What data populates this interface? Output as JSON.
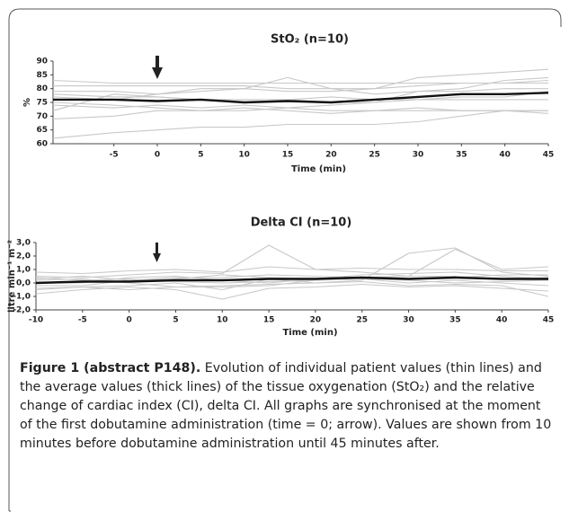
{
  "chart_data": [
    {
      "type": "line",
      "title": "StO₂ (n=10)",
      "ylabel": "%",
      "xlabel": "Time (min)",
      "x": [
        -12,
        -5,
        0,
        5,
        10,
        15,
        20,
        25,
        30,
        35,
        40,
        45
      ],
      "xlim": [
        -12,
        45
      ],
      "xticks": [
        -5,
        0,
        5,
        10,
        15,
        20,
        25,
        30,
        35,
        40,
        45
      ],
      "ylim": [
        60,
        90
      ],
      "yticks": [
        60,
        65,
        70,
        75,
        80,
        85,
        90
      ],
      "series": [
        {
          "color": "#c8c8c8",
          "values": [
            81,
            81,
            81,
            81,
            81,
            80,
            80,
            80,
            81,
            82,
            82,
            83
          ]
        },
        {
          "color": "#c8c8c8",
          "values": [
            79,
            79,
            78,
            79,
            80,
            79,
            79,
            80,
            84,
            85,
            86,
            87
          ]
        },
        {
          "color": "#c8c8c8",
          "values": [
            74,
            73,
            74,
            73,
            74,
            73,
            74,
            75,
            79,
            80,
            83,
            84
          ]
        },
        {
          "color": "#c8c8c8",
          "values": [
            69,
            70,
            72,
            72,
            73,
            72,
            71,
            72,
            73,
            72,
            72,
            71
          ]
        },
        {
          "color": "#c8c8c8",
          "values": [
            62,
            64,
            65,
            66,
            66,
            67,
            67,
            67,
            68,
            70,
            72,
            72
          ]
        },
        {
          "color": "#c8c8c8",
          "values": [
            77,
            76,
            78,
            80,
            80,
            84,
            80,
            78,
            79,
            79,
            80,
            80
          ]
        },
        {
          "color": "#c8c8c8",
          "values": [
            72,
            78,
            77,
            76,
            76,
            76,
            77,
            76,
            76,
            76,
            76,
            76
          ]
        },
        {
          "color": "#c8c8c8",
          "values": [
            75,
            74,
            73,
            72,
            72,
            73,
            72,
            72,
            72,
            72,
            72,
            72
          ]
        },
        {
          "color": "#c8c8c8",
          "values": [
            83,
            82,
            82,
            82,
            82,
            82,
            82,
            82,
            82,
            82,
            82,
            82
          ]
        },
        {
          "color": "#c8c8c8",
          "values": [
            78,
            77,
            77,
            76,
            76,
            76,
            75,
            75,
            76,
            77,
            77,
            79
          ]
        },
        {
          "color": "#111111",
          "values": [
            76,
            76,
            75.5,
            76,
            75,
            75.5,
            75,
            76,
            77,
            78,
            78,
            78.5
          ]
        }
      ]
    },
    {
      "type": "line",
      "title": "Delta CI (n=10)",
      "ylabel": "litre min⁻¹ m⁻²",
      "xlabel": "Time (min)",
      "x": [
        -10,
        -5,
        0,
        5,
        10,
        15,
        20,
        25,
        30,
        35,
        40,
        45
      ],
      "xlim": [
        -10,
        45
      ],
      "xticks": [
        -10,
        -5,
        0,
        5,
        10,
        15,
        20,
        25,
        30,
        35,
        40,
        45
      ],
      "ylim": [
        -2,
        3
      ],
      "yticks": [
        {
          "value": -2,
          "label": "-2,0"
        },
        {
          "value": -1,
          "label": "-1,0"
        },
        {
          "value": 0,
          "label": "0,0"
        },
        {
          "value": 1,
          "label": "1,0"
        },
        {
          "value": 2,
          "label": "2,0"
        },
        {
          "value": 3,
          "label": "3,0"
        }
      ],
      "series": [
        {
          "color": "#c8c8c8",
          "values": [
            0.5,
            0.4,
            0.6,
            0.8,
            0.7,
            2.8,
            1.0,
            0.8,
            0.5,
            2.5,
            1.0,
            1.2
          ]
        },
        {
          "color": "#c8c8c8",
          "values": [
            -0.5,
            -0.3,
            -0.2,
            0.0,
            -0.5,
            0.3,
            0.0,
            0.2,
            2.2,
            2.6,
            0.8,
            0.5
          ]
        },
        {
          "color": "#c8c8c8",
          "values": [
            0.8,
            0.7,
            0.9,
            1.0,
            0.8,
            1.2,
            1.0,
            1.1,
            1.0,
            1.0,
            0.9,
            0.9
          ]
        },
        {
          "color": "#c8c8c8",
          "values": [
            -0.8,
            -0.5,
            -0.3,
            -0.5,
            -1.2,
            -0.4,
            -0.3,
            -0.1,
            -0.3,
            -0.2,
            -0.4,
            -0.6
          ]
        },
        {
          "color": "#c8c8c8",
          "values": [
            0.2,
            0.3,
            0.0,
            -0.3,
            -0.3,
            -0.2,
            0.2,
            0.4,
            0.5,
            0.5,
            0.3,
            0.4
          ]
        },
        {
          "color": "#c8c8c8",
          "values": [
            -0.2,
            -0.2,
            0.2,
            0.4,
            0.4,
            0.6,
            0.5,
            0.4,
            0.3,
            0.4,
            0.6,
            0.6
          ]
        },
        {
          "color": "#c8c8c8",
          "values": [
            0.3,
            0.5,
            0.2,
            0.3,
            0.6,
            0.4,
            0.3,
            0.6,
            0.7,
            0.8,
            0.5,
            0.3
          ]
        },
        {
          "color": "#c8c8c8",
          "values": [
            0.0,
            0.0,
            0.4,
            0.5,
            0.2,
            0.0,
            0.3,
            0.3,
            0.0,
            0.2,
            0.0,
            -0.2
          ]
        },
        {
          "color": "#c8c8c8",
          "values": [
            -0.4,
            -0.3,
            -0.5,
            -0.3,
            -0.2,
            -0.1,
            0.0,
            0.1,
            -0.2,
            -0.1,
            -0.2,
            -1.0
          ]
        },
        {
          "color": "#c8c8c8",
          "values": [
            0.4,
            0.2,
            0.3,
            0.1,
            0.0,
            0.1,
            0.2,
            0.3,
            0.2,
            0.0,
            0.1,
            0.2
          ]
        },
        {
          "color": "#111111",
          "values": [
            0.0,
            0.1,
            0.1,
            0.2,
            0.2,
            0.3,
            0.3,
            0.4,
            0.3,
            0.4,
            0.3,
            0.3
          ]
        }
      ]
    }
  ],
  "caption": {
    "label": "Figure 1 (abstract P148).",
    "text": "Evolution of individual patient values (thin lines) and the average values (thick lines) of the tissue oxygenation (StO₂) and the relative change of cardiac index (CI), delta CI. All graphs are synchronised at the moment of the first dobutamine administration (time = 0; arrow). Values are shown from 10 minutes before dobutamine administration until 45 minutes after."
  }
}
